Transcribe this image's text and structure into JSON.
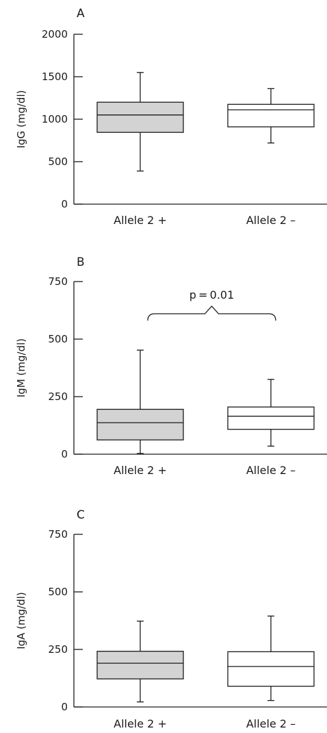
{
  "chart_data": [
    {
      "type": "box",
      "panel": "A",
      "ylabel": "IgG (mg/dl)",
      "ylim": [
        0,
        2000
      ],
      "yticks": [
        0,
        500,
        1000,
        1500,
        2000
      ],
      "categories": [
        "Allele 2 +",
        "Allele 2 –"
      ],
      "boxes": [
        {
          "category": "Allele 2 +",
          "min": 390,
          "q1": 845,
          "median": 1050,
          "q3": 1200,
          "max": 1550,
          "fill": "#d3d3d3"
        },
        {
          "category": "Allele 2 –",
          "min": 720,
          "q1": 910,
          "median": 1110,
          "q3": 1175,
          "max": 1360,
          "fill": "#ffffff"
        }
      ]
    },
    {
      "type": "box",
      "panel": "B",
      "ylabel": "IgM (mg/dl)",
      "ylim": [
        0,
        750
      ],
      "yticks": [
        0,
        250,
        500,
        750
      ],
      "categories": [
        "Allele 2 +",
        "Allele 2 –"
      ],
      "boxes": [
        {
          "category": "Allele 2 +",
          "min": 3,
          "q1": 62,
          "median": 137,
          "q3": 195,
          "max": 452,
          "fill": "#d3d3d3"
        },
        {
          "category": "Allele 2 –",
          "min": 35,
          "q1": 108,
          "median": 165,
          "q3": 205,
          "max": 325,
          "fill": "#ffffff"
        }
      ],
      "annotation": "p = 0.01"
    },
    {
      "type": "box",
      "panel": "C",
      "ylabel": "IgA (mg/dl)",
      "ylim": [
        0,
        750
      ],
      "yticks": [
        0,
        250,
        500,
        750
      ],
      "categories": [
        "Allele 2 +",
        "Allele 2 –"
      ],
      "boxes": [
        {
          "category": "Allele 2 +",
          "min": 22,
          "q1": 122,
          "median": 190,
          "q3": 242,
          "max": 373,
          "fill": "#d3d3d3"
        },
        {
          "category": "Allele 2 –",
          "min": 28,
          "q1": 90,
          "median": 176,
          "q3": 240,
          "max": 395,
          "fill": "#ffffff"
        }
      ]
    }
  ]
}
